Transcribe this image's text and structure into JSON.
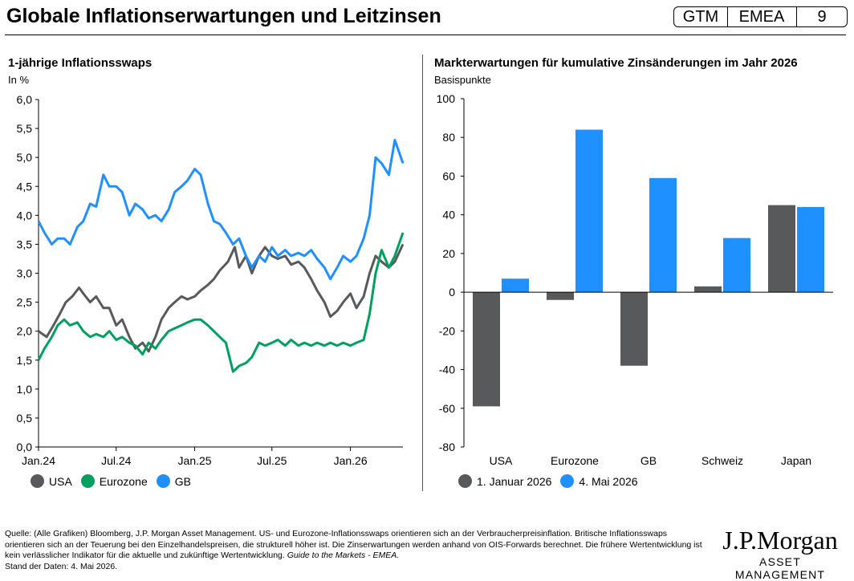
{
  "header": {
    "title": "Globale Inflationserwartungen und Leitzinsen",
    "badge_1": "GTM",
    "badge_2": "EMEA",
    "badge_3": "9"
  },
  "colors": {
    "usa": "#58595b",
    "eurozone": "#00a15f",
    "gb": "#1e90ff",
    "dark": "#58595b",
    "light": "#1e90ff"
  },
  "chart_data": [
    {
      "type": "line",
      "title": "1-jährige Inflationsswaps",
      "ylabel": "In %",
      "ylim": [
        0,
        6
      ],
      "yticks": [
        "0,0",
        "0,5",
        "1,0",
        "1,5",
        "2,0",
        "2,5",
        "3,0",
        "3,5",
        "4,0",
        "4,5",
        "5,0",
        "5,5",
        "6,0"
      ],
      "xticks": [
        "Jan.24",
        "Jul.24",
        "Jan.25",
        "Jul.25",
        "Jan.26"
      ],
      "xrange": [
        "2024-01-01",
        "2026-05-04"
      ],
      "legend_position": "bottom-left",
      "series": [
        {
          "name": "USA",
          "color": "#58595b",
          "points": [
            [
              "2024-01-01",
              2.0
            ],
            [
              "2024-01-20",
              1.9
            ],
            [
              "2024-02-05",
              2.1
            ],
            [
              "2024-02-20",
              2.3
            ],
            [
              "2024-03-05",
              2.5
            ],
            [
              "2024-03-20",
              2.6
            ],
            [
              "2024-04-05",
              2.75
            ],
            [
              "2024-04-15",
              2.65
            ],
            [
              "2024-05-01",
              2.5
            ],
            [
              "2024-05-15",
              2.6
            ],
            [
              "2024-06-01",
              2.4
            ],
            [
              "2024-06-15",
              2.4
            ],
            [
              "2024-07-01",
              2.1
            ],
            [
              "2024-07-15",
              2.2
            ],
            [
              "2024-08-01",
              1.9
            ],
            [
              "2024-08-15",
              1.7
            ],
            [
              "2024-09-01",
              1.8
            ],
            [
              "2024-09-15",
              1.65
            ],
            [
              "2024-10-01",
              1.9
            ],
            [
              "2024-10-15",
              2.2
            ],
            [
              "2024-11-01",
              2.4
            ],
            [
              "2024-11-15",
              2.5
            ],
            [
              "2024-12-01",
              2.6
            ],
            [
              "2024-12-15",
              2.55
            ],
            [
              "2025-01-01",
              2.6
            ],
            [
              "2025-01-15",
              2.7
            ],
            [
              "2025-02-01",
              2.8
            ],
            [
              "2025-02-15",
              2.9
            ],
            [
              "2025-03-01",
              3.05
            ],
            [
              "2025-03-20",
              3.2
            ],
            [
              "2025-04-05",
              3.45
            ],
            [
              "2025-04-15",
              3.1
            ],
            [
              "2025-05-01",
              3.3
            ],
            [
              "2025-05-15",
              3.0
            ],
            [
              "2025-06-01",
              3.3
            ],
            [
              "2025-06-15",
              3.45
            ],
            [
              "2025-07-01",
              3.3
            ],
            [
              "2025-07-15",
              3.25
            ],
            [
              "2025-08-01",
              3.3
            ],
            [
              "2025-08-15",
              3.15
            ],
            [
              "2025-09-01",
              3.2
            ],
            [
              "2025-09-15",
              3.1
            ],
            [
              "2025-10-01",
              2.9
            ],
            [
              "2025-10-15",
              2.7
            ],
            [
              "2025-11-01",
              2.5
            ],
            [
              "2025-11-15",
              2.25
            ],
            [
              "2025-12-01",
              2.35
            ],
            [
              "2025-12-15",
              2.5
            ],
            [
              "2026-01-01",
              2.65
            ],
            [
              "2026-01-15",
              2.4
            ],
            [
              "2026-02-01",
              2.6
            ],
            [
              "2026-02-15",
              3.0
            ],
            [
              "2026-03-01",
              3.3
            ],
            [
              "2026-03-15",
              3.2
            ],
            [
              "2026-04-01",
              3.1
            ],
            [
              "2026-04-15",
              3.2
            ],
            [
              "2026-05-04",
              3.5
            ]
          ]
        },
        {
          "name": "Eurozone",
          "color": "#00a15f",
          "points": [
            [
              "2024-01-01",
              1.5
            ],
            [
              "2024-01-15",
              1.7
            ],
            [
              "2024-02-01",
              1.9
            ],
            [
              "2024-02-15",
              2.1
            ],
            [
              "2024-03-01",
              2.2
            ],
            [
              "2024-03-15",
              2.1
            ],
            [
              "2024-04-01",
              2.15
            ],
            [
              "2024-04-15",
              2.0
            ],
            [
              "2024-05-01",
              1.9
            ],
            [
              "2024-05-15",
              1.95
            ],
            [
              "2024-06-01",
              1.9
            ],
            [
              "2024-06-15",
              2.0
            ],
            [
              "2024-07-01",
              1.85
            ],
            [
              "2024-07-15",
              1.9
            ],
            [
              "2024-08-01",
              1.8
            ],
            [
              "2024-08-15",
              1.75
            ],
            [
              "2024-09-01",
              1.6
            ],
            [
              "2024-09-15",
              1.8
            ],
            [
              "2024-10-01",
              1.7
            ],
            [
              "2024-10-15",
              1.85
            ],
            [
              "2024-11-01",
              2.0
            ],
            [
              "2024-11-15",
              2.05
            ],
            [
              "2024-12-01",
              2.1
            ],
            [
              "2024-12-15",
              2.15
            ],
            [
              "2025-01-01",
              2.2
            ],
            [
              "2025-01-15",
              2.2
            ],
            [
              "2025-02-01",
              2.1
            ],
            [
              "2025-02-15",
              2.0
            ],
            [
              "2025-03-01",
              1.9
            ],
            [
              "2025-03-15",
              1.8
            ],
            [
              "2025-04-01",
              1.3
            ],
            [
              "2025-04-15",
              1.4
            ],
            [
              "2025-05-01",
              1.45
            ],
            [
              "2025-05-15",
              1.55
            ],
            [
              "2025-06-01",
              1.8
            ],
            [
              "2025-06-15",
              1.75
            ],
            [
              "2025-07-01",
              1.8
            ],
            [
              "2025-07-15",
              1.85
            ],
            [
              "2025-08-01",
              1.75
            ],
            [
              "2025-08-15",
              1.85
            ],
            [
              "2025-09-01",
              1.75
            ],
            [
              "2025-09-15",
              1.8
            ],
            [
              "2025-10-01",
              1.75
            ],
            [
              "2025-10-15",
              1.8
            ],
            [
              "2025-11-01",
              1.75
            ],
            [
              "2025-11-15",
              1.8
            ],
            [
              "2025-12-01",
              1.75
            ],
            [
              "2025-12-15",
              1.8
            ],
            [
              "2026-01-01",
              1.75
            ],
            [
              "2026-01-15",
              1.8
            ],
            [
              "2026-02-01",
              1.85
            ],
            [
              "2026-02-15",
              2.3
            ],
            [
              "2026-03-01",
              3.0
            ],
            [
              "2026-03-15",
              3.4
            ],
            [
              "2026-04-01",
              3.1
            ],
            [
              "2026-04-15",
              3.3
            ],
            [
              "2026-05-04",
              3.7
            ]
          ]
        },
        {
          "name": "GB",
          "color": "#1e90ff",
          "points": [
            [
              "2024-01-01",
              3.9
            ],
            [
              "2024-01-15",
              3.7
            ],
            [
              "2024-02-01",
              3.5
            ],
            [
              "2024-02-15",
              3.6
            ],
            [
              "2024-03-01",
              3.6
            ],
            [
              "2024-03-15",
              3.5
            ],
            [
              "2024-04-01",
              3.8
            ],
            [
              "2024-04-15",
              3.9
            ],
            [
              "2024-05-01",
              4.2
            ],
            [
              "2024-05-15",
              4.15
            ],
            [
              "2024-06-01",
              4.7
            ],
            [
              "2024-06-15",
              4.5
            ],
            [
              "2024-07-01",
              4.5
            ],
            [
              "2024-07-15",
              4.4
            ],
            [
              "2024-08-01",
              4.0
            ],
            [
              "2024-08-15",
              4.2
            ],
            [
              "2024-09-01",
              4.1
            ],
            [
              "2024-09-15",
              3.95
            ],
            [
              "2024-10-01",
              4.0
            ],
            [
              "2024-10-15",
              3.9
            ],
            [
              "2024-11-01",
              4.1
            ],
            [
              "2024-11-15",
              4.4
            ],
            [
              "2024-12-01",
              4.5
            ],
            [
              "2024-12-15",
              4.6
            ],
            [
              "2025-01-01",
              4.8
            ],
            [
              "2025-01-15",
              4.7
            ],
            [
              "2025-02-01",
              4.2
            ],
            [
              "2025-02-15",
              3.9
            ],
            [
              "2025-03-01",
              3.85
            ],
            [
              "2025-03-15",
              3.7
            ],
            [
              "2025-04-01",
              3.5
            ],
            [
              "2025-04-15",
              3.6
            ],
            [
              "2025-05-01",
              3.3
            ],
            [
              "2025-05-15",
              3.1
            ],
            [
              "2025-06-01",
              3.3
            ],
            [
              "2025-06-15",
              3.2
            ],
            [
              "2025-07-01",
              3.45
            ],
            [
              "2025-07-15",
              3.3
            ],
            [
              "2025-08-01",
              3.4
            ],
            [
              "2025-08-15",
              3.3
            ],
            [
              "2025-09-01",
              3.35
            ],
            [
              "2025-09-15",
              3.3
            ],
            [
              "2025-10-01",
              3.4
            ],
            [
              "2025-10-15",
              3.25
            ],
            [
              "2025-11-01",
              3.1
            ],
            [
              "2025-11-15",
              2.9
            ],
            [
              "2025-12-01",
              3.1
            ],
            [
              "2025-12-15",
              3.3
            ],
            [
              "2026-01-01",
              3.2
            ],
            [
              "2026-01-15",
              3.3
            ],
            [
              "2026-02-01",
              3.6
            ],
            [
              "2026-02-15",
              4.0
            ],
            [
              "2026-03-01",
              5.0
            ],
            [
              "2026-03-15",
              4.9
            ],
            [
              "2026-04-01",
              4.7
            ],
            [
              "2026-04-15",
              5.3
            ],
            [
              "2026-05-04",
              4.9
            ]
          ]
        }
      ]
    },
    {
      "type": "bar",
      "title": "Markterwartungen für kumulative Zinsänderungen im Jahr 2026",
      "ylabel": "Basispunkte",
      "ylim": [
        -80,
        100
      ],
      "yticks": [
        "100",
        "80",
        "60",
        "40",
        "20",
        "0",
        "-20",
        "-40",
        "-60",
        "-80"
      ],
      "categories": [
        "USA",
        "Eurozone",
        "GB",
        "Schweiz",
        "Japan"
      ],
      "legend_position": "bottom-left",
      "series": [
        {
          "name": "1. Januar 2026",
          "color": "#58595b",
          "values": [
            -59,
            -4,
            -38,
            3,
            45
          ]
        },
        {
          "name": "4. Mai 2026",
          "color": "#1e90ff",
          "values": [
            7,
            84,
            59,
            28,
            44
          ]
        }
      ]
    }
  ],
  "left_chart": {
    "title": "1-jährige Inflationsswaps",
    "subtitle": "In %",
    "legend": [
      "USA",
      "Eurozone",
      "GB"
    ]
  },
  "right_chart": {
    "title": "Markterwartungen für kumulative Zinsänderungen im Jahr 2026",
    "subtitle": "Basispunkte",
    "legend": [
      "1. Januar 2026",
      "4. Mai 2026"
    ]
  },
  "footer": {
    "text": "Quelle: (Alle Grafiken) Bloomberg, J.P. Morgan Asset Management. US- und Eurozone-Inflationsswaps orientieren sich an der Verbraucherpreisinflation. Britische Inflationsswaps orientieren sich an der Teuerung bei den Einzelhandelspreisen, die strukturell höher ist. Die Zinserwartungen werden anhand von OIS-Forwards berechnet. Die frühere Wertentwicklung ist kein verlässlicher Indikator für die aktuelle und zukünftige Wertentwicklung.",
    "italic": "Guide to the Markets - EMEA.",
    "date": "Stand der Daten: 4. Mai 2026."
  },
  "logo": {
    "line1": "J.P.Morgan",
    "line2": "ASSET MANAGEMENT"
  }
}
